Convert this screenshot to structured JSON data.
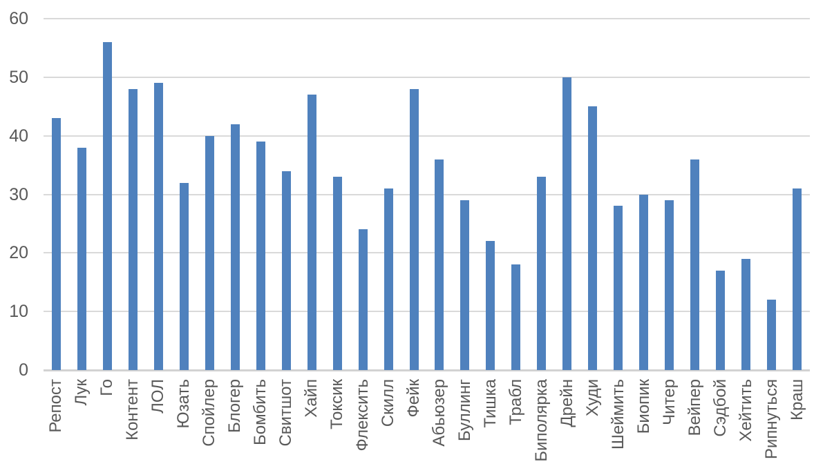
{
  "chart_data": {
    "type": "bar",
    "title": "",
    "xlabel": "",
    "ylabel": "",
    "categories": [
      "Репост",
      "Лук",
      "Го",
      "Контент",
      "ЛОЛ",
      "Юзать",
      "Спойлер",
      "Блогер",
      "Бомбить",
      "Свитшот",
      "Хайп",
      "Токсик",
      "Флексить",
      "Скилл",
      "Фейк",
      "Абьюзер",
      "Буллинг",
      "Тишка",
      "Трабл",
      "Биполярка",
      "Дрейн",
      "Худи",
      "Шеймить",
      "Биопик",
      "Читер",
      "Вейпер",
      "Сэдбой",
      "Хейтить",
      "Рипнуться",
      "Краш"
    ],
    "values": [
      43,
      38,
      56,
      48,
      49,
      32,
      40,
      42,
      39,
      34,
      47,
      33,
      24,
      31,
      48,
      36,
      29,
      22,
      18,
      33,
      50,
      45,
      28,
      30,
      29,
      36,
      17,
      19,
      12,
      31
    ],
    "ylim": [
      0,
      60
    ],
    "yticks": [
      0,
      10,
      20,
      30,
      40,
      50,
      60
    ],
    "grid": true,
    "legend": false,
    "colors": {
      "bar": "#4F81BD",
      "gridline": "#D9D9D9",
      "axis_line": "#D2D2D2",
      "tick_label": "#595959",
      "background": "#FFFFFF"
    }
  }
}
